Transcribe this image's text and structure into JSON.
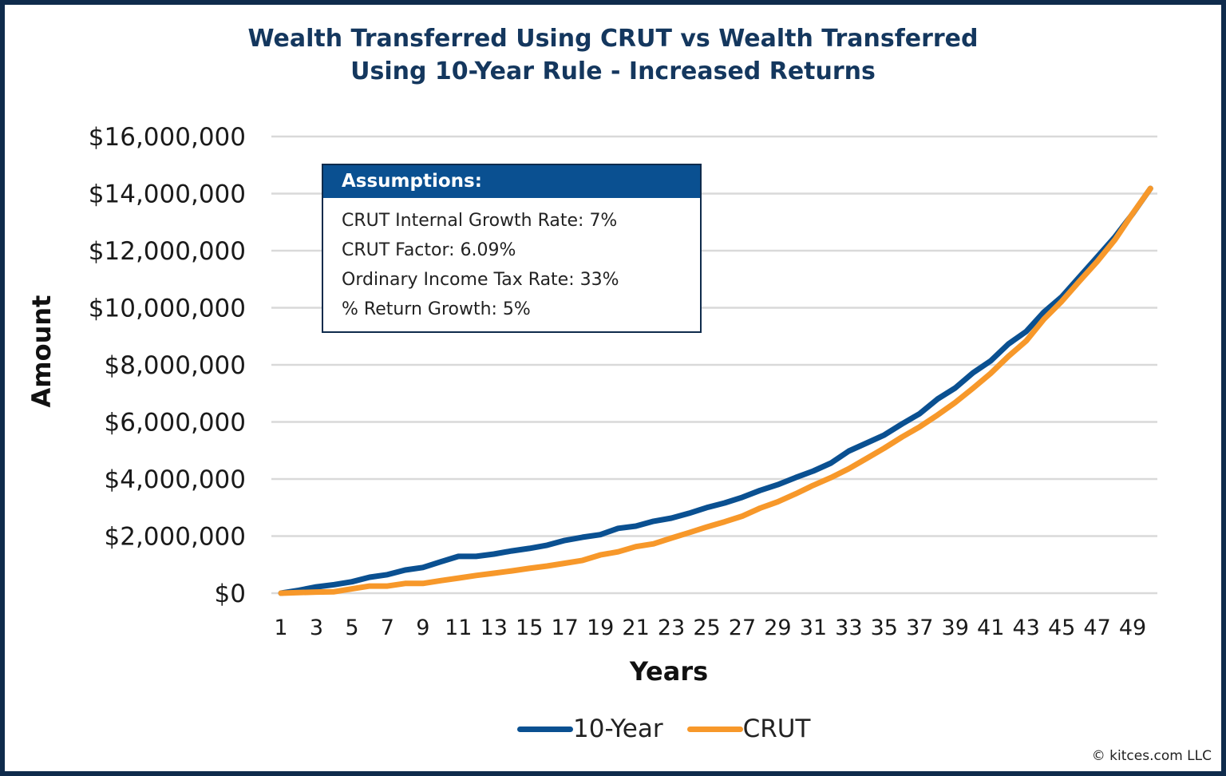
{
  "chart_data": {
    "type": "line",
    "title": "Wealth Transferred Using CRUT vs Wealth Transferred Using 10-Year Rule - Increased Returns",
    "title_lines": [
      "Wealth Transferred Using CRUT vs Wealth Transferred",
      "Using 10-Year Rule - Increased Returns"
    ],
    "xlabel": "Years",
    "ylabel": "Amount",
    "ylim": [
      0,
      16000000
    ],
    "yticks": [
      "$0",
      "$2,000,000",
      "$4,000,000",
      "$6,000,000",
      "$8,000,000",
      "$10,000,000",
      "$12,000,000",
      "$14,000,000",
      "$16,000,000"
    ],
    "xticks": [
      "1",
      "3",
      "5",
      "7",
      "9",
      "11",
      "13",
      "15",
      "17",
      "19",
      "21",
      "23",
      "25",
      "27",
      "29",
      "31",
      "33",
      "35",
      "37",
      "39",
      "41",
      "43",
      "45",
      "47",
      "49"
    ],
    "x": [
      1,
      2,
      3,
      4,
      5,
      6,
      7,
      8,
      9,
      10,
      11,
      12,
      13,
      14,
      15,
      16,
      17,
      18,
      19,
      20,
      21,
      22,
      23,
      24,
      25,
      26,
      27,
      28,
      29,
      30,
      31,
      32,
      33,
      34,
      35,
      36,
      37,
      38,
      39,
      40,
      41,
      42,
      43,
      44,
      45,
      46,
      47,
      48,
      49,
      50
    ],
    "grid": true,
    "legend_position": "bottom",
    "series": [
      {
        "name": "10-Year",
        "color": "#0a5091",
        "values": [
          0,
          100000,
          220000,
          300000,
          400000,
          560000,
          650000,
          810000,
          900000,
          1100000,
          1290000,
          1290000,
          1370000,
          1480000,
          1570000,
          1680000,
          1850000,
          1960000,
          2050000,
          2270000,
          2350000,
          2520000,
          2630000,
          2800000,
          3000000,
          3160000,
          3360000,
          3600000,
          3800000,
          4050000,
          4280000,
          4560000,
          4980000,
          5260000,
          5540000,
          5930000,
          6290000,
          6800000,
          7190000,
          7720000,
          8140000,
          8730000,
          9170000,
          9850000,
          10380000,
          11080000,
          11780000,
          12480000,
          13290000,
          14180000
        ]
      },
      {
        "name": "CRUT",
        "color": "#f7982a",
        "values": [
          0,
          20000,
          40000,
          50000,
          150000,
          250000,
          250000,
          340000,
          340000,
          440000,
          530000,
          620000,
          700000,
          780000,
          870000,
          950000,
          1050000,
          1150000,
          1340000,
          1450000,
          1630000,
          1730000,
          1930000,
          2120000,
          2320000,
          2500000,
          2700000,
          2980000,
          3200000,
          3480000,
          3780000,
          4050000,
          4360000,
          4720000,
          5080000,
          5470000,
          5830000,
          6240000,
          6680000,
          7180000,
          7700000,
          8300000,
          8840000,
          9600000,
          10220000,
          10930000,
          11620000,
          12380000,
          13300000,
          14180000
        ]
      }
    ]
  },
  "assumptions": {
    "header": "Assumptions:",
    "lines": [
      "CRUT Internal Growth Rate: 7%",
      "CRUT Factor: 6.09%",
      "Ordinary Income Tax Rate: 33%",
      "% Return Growth: 5%"
    ]
  },
  "copyright": "© kitces.com LLC"
}
